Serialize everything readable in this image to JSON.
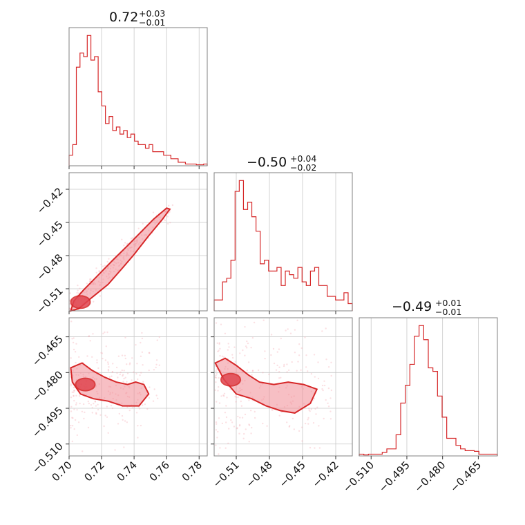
{
  "chart_data": {
    "type": "corner",
    "color": "#d62728",
    "grid": true,
    "parameters": [
      {
        "title": {
          "value": "0.72",
          "upper": "+0.03",
          "lower": "−0.01"
        },
        "range": [
          0.7,
          0.785
        ],
        "ticks": [
          0.7,
          0.72,
          0.74,
          0.76,
          0.78
        ],
        "tick_labels": [
          "0.70",
          "0.72",
          "0.74",
          "0.76",
          "0.78"
        ],
        "hist": [
          3,
          6,
          28,
          32,
          31,
          37,
          30,
          31,
          21,
          17,
          12,
          14,
          10,
          11,
          9,
          10,
          8,
          9,
          7,
          6,
          6,
          5,
          6,
          4,
          4,
          4,
          3,
          3,
          2,
          2,
          1,
          1,
          0.5,
          0.5,
          0.5,
          0.3,
          0.3,
          0.5
        ]
      },
      {
        "title": {
          "value": "−0.50",
          "upper": "+0.04",
          "lower": "−0.02"
        },
        "range": [
          -0.53,
          -0.405
        ],
        "ticks": [
          -0.51,
          -0.48,
          -0.45,
          -0.42
        ],
        "tick_labels": [
          "−0.51",
          "−0.48",
          "−0.45",
          "−0.42"
        ],
        "hist": [
          3,
          3,
          8,
          9,
          14,
          33,
          36,
          28,
          30,
          26,
          22,
          13,
          14,
          11,
          11,
          12,
          7,
          11,
          10,
          9,
          12,
          8,
          7,
          11,
          12,
          7,
          7,
          4,
          4,
          3,
          3,
          5,
          2
        ]
      },
      {
        "title": {
          "value": "−0.49",
          "upper": "+0.01",
          "lower": "−0.01"
        },
        "range": [
          -0.515,
          -0.457
        ],
        "ticks": [
          -0.51,
          -0.495,
          -0.48,
          -0.465
        ],
        "tick_labels": [
          "−0.510",
          "−0.495",
          "−0.480",
          "−0.465"
        ],
        "hist": [
          0.5,
          0.3,
          0.5,
          0.5,
          0.5,
          1,
          2,
          2,
          6,
          15,
          20,
          26,
          34,
          37,
          33,
          25,
          24,
          17,
          11,
          5,
          5,
          3,
          2,
          1.5,
          1.5,
          1.3,
          0.5,
          0.5,
          0.5,
          0.5
        ]
      }
    ],
    "panels": [
      {
        "x_param": 0,
        "y_param": 1,
        "density_center": [
          0.707,
          -0.522
        ],
        "trend": {
          "x": [
            0.7,
            0.763
          ],
          "y": [
            -0.528,
            -0.436
          ]
        },
        "contour_x": [
          0.701,
          0.706,
          0.714,
          0.724,
          0.733,
          0.74,
          0.749,
          0.757,
          0.762,
          0.76,
          0.752,
          0.744,
          0.736,
          0.727,
          0.717,
          0.709,
          0.703
        ],
        "contour_y": [
          -0.53,
          -0.528,
          -0.518,
          -0.506,
          -0.491,
          -0.479,
          -0.462,
          -0.448,
          -0.438,
          -0.437,
          -0.447,
          -0.459,
          -0.471,
          -0.484,
          -0.499,
          -0.511,
          -0.521
        ]
      },
      {
        "x_param": 0,
        "y_param": 2,
        "density_center": [
          0.71,
          -0.485
        ],
        "contour_x": [
          0.701,
          0.708,
          0.714,
          0.722,
          0.729,
          0.736,
          0.741,
          0.746,
          0.749,
          0.743,
          0.733,
          0.724,
          0.715,
          0.707,
          0.702
        ],
        "contour_y": [
          -0.478,
          -0.476,
          -0.479,
          -0.482,
          -0.484,
          -0.485,
          -0.484,
          -0.485,
          -0.489,
          -0.494,
          -0.494,
          -0.492,
          -0.491,
          -0.489,
          -0.484
        ]
      },
      {
        "x_param": 1,
        "y_param": 2,
        "density_center": [
          -0.515,
          -0.483
        ],
        "contour_x": [
          -0.529,
          -0.52,
          -0.51,
          -0.499,
          -0.489,
          -0.476,
          -0.463,
          -0.449,
          -0.437,
          -0.443,
          -0.457,
          -0.47,
          -0.483,
          -0.496,
          -0.51,
          -0.521
        ],
        "contour_y": [
          -0.476,
          -0.474,
          -0.477,
          -0.481,
          -0.484,
          -0.485,
          -0.484,
          -0.485,
          -0.487,
          -0.493,
          -0.497,
          -0.496,
          -0.494,
          -0.491,
          -0.489,
          -0.483
        ]
      }
    ]
  }
}
